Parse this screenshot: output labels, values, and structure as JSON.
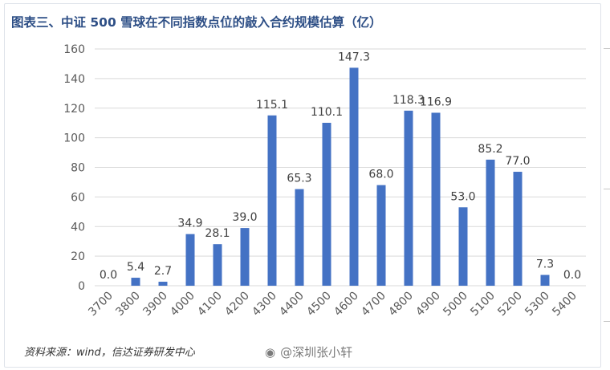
{
  "title": "图表三、中证 500 雪球在不同指数点位的敲入合约规模估算（亿）",
  "source": "资料来源：wind，信达证券研发中心",
  "watermark": "@深圳张小轩",
  "colors": {
    "bar": "#4472c4",
    "title": "#2e4f86",
    "grid": "#d9d9d9",
    "axis_text": "#595959"
  },
  "chart_data": {
    "type": "bar",
    "categories": [
      "3700",
      "3800",
      "3900",
      "4000",
      "4100",
      "4200",
      "4300",
      "4400",
      "4500",
      "4600",
      "4700",
      "4800",
      "4900",
      "5000",
      "5100",
      "5200",
      "5300",
      "5400"
    ],
    "values": [
      0.0,
      5.4,
      2.7,
      34.9,
      28.1,
      39.0,
      115.1,
      65.3,
      110.1,
      147.3,
      68.0,
      118.3,
      116.9,
      53.0,
      85.2,
      77.0,
      7.3,
      0.0
    ],
    "labels": [
      "0.0",
      "5.4",
      "2.7",
      "34.9",
      "28.1",
      "39.0",
      "115.1",
      "65.3",
      "110.1",
      "147.3",
      "68.0",
      "118.3",
      "116.9",
      "53.0",
      "85.2",
      "77.0",
      "7.3",
      "0.0"
    ],
    "yticks": [
      "0",
      "20",
      "40",
      "60",
      "80",
      "100",
      "120",
      "140",
      "160"
    ],
    "ylim": [
      0,
      160
    ],
    "grid": true,
    "legend": "none"
  }
}
